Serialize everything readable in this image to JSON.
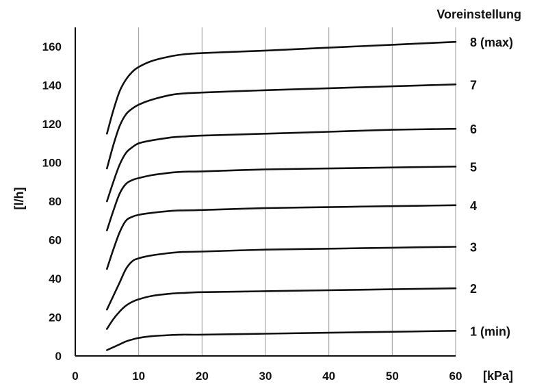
{
  "chart_data": {
    "type": "line",
    "title": "",
    "xlabel": "[kPa]",
    "ylabel": "[l/h]",
    "legend_title": "Voreinstellung",
    "xlim": [
      0,
      60
    ],
    "ylim": [
      0,
      170
    ],
    "x_ticks": [
      "0",
      "10",
      "20",
      "30",
      "40",
      "50",
      "60"
    ],
    "y_ticks": [
      "0",
      "20",
      "40",
      "60",
      "80",
      "100",
      "120",
      "140",
      "160"
    ],
    "grid": "vertical",
    "legend": "right-end labels",
    "x": [
      5,
      6,
      7,
      8,
      9,
      10,
      12,
      15,
      17,
      20,
      30,
      40,
      50,
      60
    ],
    "series": [
      {
        "name": "1 (min)",
        "values": [
          3,
          4.5,
          6,
          7.5,
          8.5,
          9.3,
          10.2,
          10.8,
          11,
          11,
          11.5,
          12,
          12.5,
          13
        ]
      },
      {
        "name": "2",
        "values": [
          14,
          19,
          23,
          26,
          28,
          29.3,
          31,
          32.2,
          32.6,
          33,
          33.5,
          34,
          34.5,
          35
        ]
      },
      {
        "name": "3",
        "values": [
          24,
          31,
          38,
          45,
          49,
          50.5,
          52,
          53.3,
          53.8,
          54,
          55,
          55.5,
          56,
          56.5
        ]
      },
      {
        "name": "4",
        "values": [
          45,
          55,
          64,
          70,
          72,
          73,
          74,
          75,
          75.3,
          75.5,
          76.5,
          77,
          77.5,
          78
        ]
      },
      {
        "name": "5",
        "values": [
          65,
          75,
          84,
          89,
          91,
          92,
          93.5,
          94.8,
          95.3,
          95.5,
          96.5,
          97,
          97.5,
          98
        ]
      },
      {
        "name": "6",
        "values": [
          80,
          90,
          99,
          105,
          108,
          110,
          111.5,
          113,
          113.5,
          114,
          115,
          116,
          117,
          117.5
        ]
      },
      {
        "name": "7",
        "values": [
          97,
          109,
          119,
          125,
          128,
          130,
          132.5,
          135,
          135.8,
          136.3,
          137.5,
          138.5,
          139.5,
          140.5
        ]
      },
      {
        "name": "8 (max)",
        "values": [
          115,
          127,
          137,
          143,
          147,
          149.5,
          152.5,
          155,
          156,
          156.7,
          158,
          159.5,
          161,
          162.5
        ]
      }
    ]
  }
}
